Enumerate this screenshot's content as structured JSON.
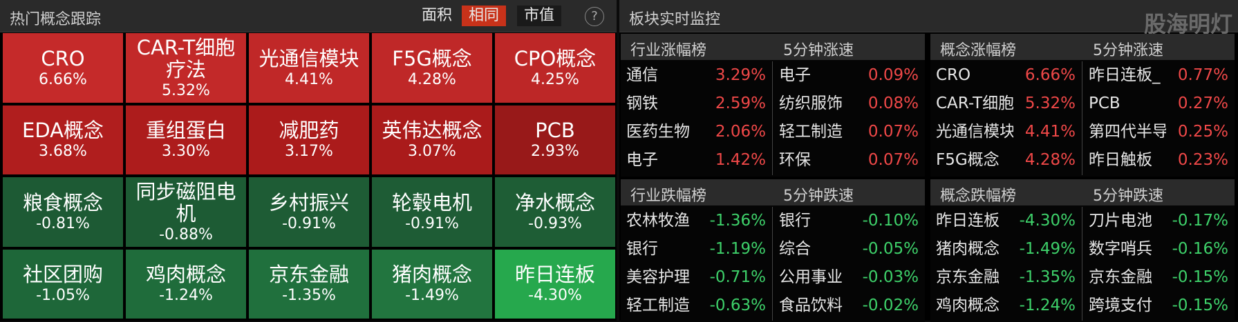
{
  "left_panel": {
    "title": "热门概念跟踪",
    "toggle": [
      "面积",
      "相同",
      "市值"
    ],
    "help": "?",
    "tiles": [
      {
        "name": "CRO",
        "change": "6.66%",
        "color": "#c52a2a"
      },
      {
        "name": "CAR-T细胞疗法",
        "change": "5.32%",
        "color": "#c22929"
      },
      {
        "name": "光通信模块",
        "change": "4.41%",
        "color": "#c02828"
      },
      {
        "name": "F5G概念",
        "change": "4.28%",
        "color": "#bf2828"
      },
      {
        "name": "CPO概念",
        "change": "4.25%",
        "color": "#bd2727"
      },
      {
        "name": "EDA概念",
        "change": "3.68%",
        "color": "#b01e1e"
      },
      {
        "name": "重组蛋白",
        "change": "3.30%",
        "color": "#ad1c1c"
      },
      {
        "name": "减肥药",
        "change": "3.17%",
        "color": "#ab1b1b"
      },
      {
        "name": "英伟达概念",
        "change": "3.07%",
        "color": "#aa1b1b"
      },
      {
        "name": "PCB",
        "change": "2.93%",
        "color": "#981919"
      },
      {
        "name": "粮食概念",
        "change": "-0.81%",
        "color": "#1d5a34"
      },
      {
        "name": "同步磁阻电机",
        "change": "-0.88%",
        "color": "#1d5b34"
      },
      {
        "name": "乡村振兴",
        "change": "-0.91%",
        "color": "#1e5c35"
      },
      {
        "name": "轮毂电机",
        "change": "-0.91%",
        "color": "#1e5c35"
      },
      {
        "name": "净水概念",
        "change": "-0.93%",
        "color": "#1e5d35"
      },
      {
        "name": "社区团购",
        "change": "-1.05%",
        "color": "#1e6739"
      },
      {
        "name": "鸡肉概念",
        "change": "-1.24%",
        "color": "#1f6c3b"
      },
      {
        "name": "京东金融",
        "change": "-1.35%",
        "color": "#20703d"
      },
      {
        "name": "猪肉概念",
        "change": "-1.49%",
        "color": "#22753f"
      },
      {
        "name": "昨日连板",
        "change": "-4.30%",
        "color": "#26a84d"
      }
    ]
  },
  "right_panel": {
    "title": "板块实时监控",
    "watermark": "股海明灯",
    "sections": [
      {
        "value_color": "#f04848",
        "columns": [
          {
            "header": "行业涨幅榜",
            "rows": [
              {
                "name": "通信",
                "change": "3.29%"
              },
              {
                "name": "钢铁",
                "change": "2.59%"
              },
              {
                "name": "医药生物",
                "change": "2.06%"
              },
              {
                "name": "电子",
                "change": "1.42%"
              }
            ]
          },
          {
            "header": "5分钟涨速",
            "rows": [
              {
                "name": "电子",
                "change": "0.09%"
              },
              {
                "name": "纺织服饰",
                "change": "0.08%"
              },
              {
                "name": "轻工制造",
                "change": "0.07%"
              },
              {
                "name": "环保",
                "change": "0.07%"
              }
            ]
          }
        ]
      },
      {
        "value_color": "#f04848",
        "columns": [
          {
            "header": "概念涨幅榜",
            "rows": [
              {
                "name": "CRO",
                "change": "6.66%"
              },
              {
                "name": "CAR-T细胞",
                "change": "5.32%"
              },
              {
                "name": "光通信模块",
                "change": "4.41%"
              },
              {
                "name": "F5G概念",
                "change": "4.28%"
              }
            ]
          },
          {
            "header": "5分钟涨速",
            "rows": [
              {
                "name": "昨日连板_",
                "change": "0.77%"
              },
              {
                "name": "PCB",
                "change": "0.27%"
              },
              {
                "name": "第四代半导",
                "change": "0.25%"
              },
              {
                "name": "昨日触板",
                "change": "0.23%"
              }
            ]
          }
        ]
      },
      {
        "value_color": "#3ed16a",
        "columns": [
          {
            "header": "行业跌幅榜",
            "rows": [
              {
                "name": "农林牧渔",
                "change": "-1.36%"
              },
              {
                "name": "银行",
                "change": "-1.19%"
              },
              {
                "name": "美容护理",
                "change": "-0.71%"
              },
              {
                "name": "轻工制造",
                "change": "-0.63%"
              }
            ]
          },
          {
            "header": "5分钟跌速",
            "rows": [
              {
                "name": "银行",
                "change": "-0.10%"
              },
              {
                "name": "综合",
                "change": "-0.05%"
              },
              {
                "name": "公用事业",
                "change": "-0.03%"
              },
              {
                "name": "食品饮料",
                "change": "-0.02%"
              }
            ]
          }
        ]
      },
      {
        "value_color": "#3ed16a",
        "columns": [
          {
            "header": "概念跌幅榜",
            "rows": [
              {
                "name": "昨日连板",
                "change": "-4.30%"
              },
              {
                "name": "猪肉概念",
                "change": "-1.49%"
              },
              {
                "name": "京东金融",
                "change": "-1.35%"
              },
              {
                "name": "鸡肉概念",
                "change": "-1.24%"
              }
            ]
          },
          {
            "header": "5分钟跌速",
            "rows": [
              {
                "name": "刀片电池",
                "change": "-0.17%"
              },
              {
                "name": "数字哨兵",
                "change": "-0.16%"
              },
              {
                "name": "京东金融",
                "change": "-0.15%"
              },
              {
                "name": "跨境支付",
                "change": "-0.15%"
              }
            ]
          }
        ]
      }
    ]
  }
}
